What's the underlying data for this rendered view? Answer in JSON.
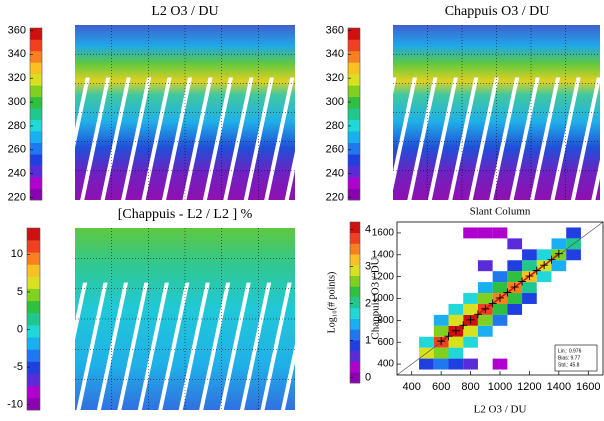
{
  "chart_data": [
    {
      "type": "map",
      "title": "L2 O3 / DU",
      "clim": [
        218,
        362
      ],
      "cticks": [
        220,
        240,
        260,
        280,
        300,
        320,
        340,
        360
      ],
      "colormap": [
        "#8b00b0",
        "#b000d0",
        "#5a2bd8",
        "#1f3fe0",
        "#1f78f0",
        "#18b0f0",
        "#20d8d8",
        "#20c890",
        "#30c040",
        "#80d020",
        "#d8e020",
        "#f8c020",
        "#f88020",
        "#f04020",
        "#d01010"
      ]
    },
    {
      "type": "map",
      "title": "Chappuis O3 / DU",
      "clim": [
        218,
        362
      ],
      "cticks": [
        220,
        240,
        260,
        280,
        300,
        320,
        340,
        360
      ],
      "colormap": [
        "#8b00b0",
        "#b000d0",
        "#5a2bd8",
        "#1f3fe0",
        "#1f78f0",
        "#18b0f0",
        "#20d8d8",
        "#20c890",
        "#30c040",
        "#80d020",
        "#d8e020",
        "#f8c020",
        "#f88020",
        "#f04020",
        "#d01010"
      ]
    },
    {
      "type": "map",
      "title": "[Chappuis - L2 / L2 ] %",
      "clim": [
        -10.7,
        13.5
      ],
      "cticks": [
        -10,
        -5,
        0,
        5,
        10
      ],
      "colormap": [
        "#8b00b0",
        "#b000d0",
        "#5a2bd8",
        "#1f3fe0",
        "#1f78f0",
        "#18b0f0",
        "#20d8d8",
        "#20c890",
        "#30c040",
        "#80d020",
        "#d8e020",
        "#f8c020",
        "#f88020",
        "#f04020",
        "#d01010"
      ]
    },
    {
      "type": "histogram2d",
      "title": "Slant Column",
      "x_label": "L2 O3 / DU",
      "y_label": "Chappuis O3 / DU",
      "colorbar_label": "Log₁₀(# points)",
      "xlim": [
        300,
        1700
      ],
      "ylim": [
        300,
        1700
      ],
      "xticks": [
        400,
        600,
        800,
        1000,
        1200,
        1400,
        1600
      ],
      "yticks": [
        400,
        600,
        800,
        1000,
        1200,
        1400,
        1600
      ],
      "clim": [
        -0.15,
        4.2
      ],
      "cticks": [
        0,
        1,
        2,
        3,
        4
      ],
      "bin_size": 100,
      "colormap": [
        "#8b00b0",
        "#b000d0",
        "#5a2bd8",
        "#1f3fe0",
        "#1f78f0",
        "#18b0f0",
        "#20d8d8",
        "#20c890",
        "#30c040",
        "#80d020",
        "#d8e020",
        "#f8c020",
        "#f88020",
        "#f04020",
        "#d01010"
      ],
      "cells": {
        "x": [
          500,
          600,
          700,
          800,
          900,
          1000,
          1100,
          1200,
          1300,
          1400,
          1500,
          500,
          600,
          700,
          800,
          900,
          1000,
          1100,
          1200,
          1300,
          1400,
          1500,
          600,
          700,
          800,
          900,
          1000,
          1100,
          1200,
          1300,
          1400,
          1500,
          600,
          700,
          800,
          900,
          1000,
          1100,
          1200,
          700,
          800,
          900,
          1000,
          1100,
          1200,
          900,
          1000,
          800,
          500,
          600,
          700,
          800,
          1000,
          1100,
          900
        ],
        "y": [
          500,
          600,
          700,
          800,
          900,
          1000,
          1100,
          1200,
          1300,
          1400,
          1500,
          600,
          700,
          800,
          900,
          1000,
          1100,
          1200,
          1300,
          1400,
          1500,
          1600,
          500,
          600,
          700,
          800,
          900,
          1000,
          1100,
          1200,
          1300,
          1400,
          800,
          900,
          1000,
          1100,
          1200,
          1300,
          1400,
          500,
          600,
          700,
          800,
          900,
          1000,
          1600,
          1600,
          1600,
          400,
          400,
          400,
          400,
          400,
          1500,
          1300
        ],
        "values": [
          2.8,
          3.8,
          4.0,
          4.0,
          3.8,
          3.6,
          3.4,
          3.2,
          3.0,
          2.6,
          2.0,
          1.6,
          2.6,
          2.8,
          2.8,
          2.6,
          2.4,
          2.2,
          2.0,
          1.8,
          1.4,
          0.8,
          2.6,
          2.8,
          2.8,
          2.6,
          2.4,
          2.2,
          2.0,
          1.8,
          1.4,
          0.8,
          1.4,
          1.6,
          1.6,
          1.4,
          1.2,
          1.0,
          0.8,
          1.6,
          1.6,
          1.4,
          1.2,
          1.0,
          0.8,
          0.3,
          0.3,
          0.3,
          0.8,
          1.2,
          1.0,
          0.5,
          0.3,
          0.5,
          0.6
        ]
      },
      "means": {
        "x": [
          600,
          650,
          700,
          750,
          800,
          850,
          900,
          950,
          1000,
          1050,
          1100,
          1150,
          1200,
          1250,
          1300,
          1350,
          1400
        ],
        "values": [
          610,
          655,
          705,
          755,
          805,
          855,
          905,
          955,
          1005,
          1055,
          1105,
          1155,
          1205,
          1255,
          1305,
          1355,
          1410
        ]
      },
      "stats": [
        "Lin.: 0.976",
        "Bias: 9.77",
        "Std.: 45.8"
      ]
    }
  ]
}
